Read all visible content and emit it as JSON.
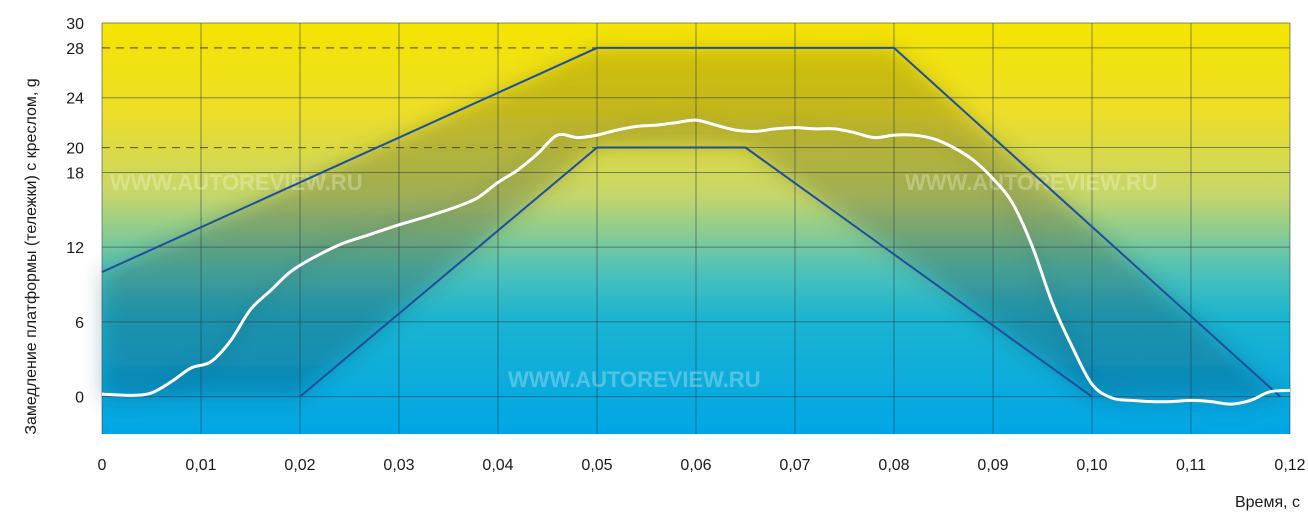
{
  "chart_data": {
    "type": "line",
    "title": "",
    "xlabel": "Время, с",
    "ylabel": "Замедление платформы (тележки) с креслом, g",
    "xlim": [
      0,
      0.12
    ],
    "ylim": [
      -3,
      30
    ],
    "x_ticks": [
      0,
      0.01,
      0.02,
      0.03,
      0.04,
      0.05,
      0.06,
      0.07,
      0.08,
      0.09,
      0.1,
      0.11,
      0.12
    ],
    "x_tick_labels": [
      "0",
      "0,01",
      "0,02",
      "0,03",
      "0,04",
      "0,05",
      "0,06",
      "0,07",
      "0,08",
      "0,09",
      "0,10",
      "0,11",
      "0,12"
    ],
    "y_ticks": [
      0,
      6,
      12,
      18,
      20,
      24,
      28,
      30
    ],
    "y_tick_labels": [
      "0",
      "6",
      "12",
      "18",
      "20",
      "24",
      "28",
      "30"
    ],
    "dashed_levels": [
      20,
      28
    ],
    "grid": true,
    "watermarks": [
      "WWW.AUTOREVIEW.RU",
      "WWW.AUTOREVIEW.RU",
      "WWW.AUTOREVIEW.RU"
    ],
    "colors": {
      "background_top": "#f5e200",
      "background_bottom": "#00a8e8",
      "corridor": "#1c4f9c",
      "curve": "#ffffff",
      "grid": "#2a3a4a"
    },
    "series": [
      {
        "role": "upper-corridor",
        "x": [
          0,
          0.05,
          0.08,
          0.119
        ],
        "y": [
          10,
          28,
          28,
          0
        ]
      },
      {
        "role": "lower-corridor",
        "x": [
          0.02,
          0.05,
          0.065,
          0.1
        ],
        "y": [
          0,
          20,
          20,
          0
        ]
      },
      {
        "role": "measured-curve",
        "x": [
          0,
          0.003,
          0.005,
          0.007,
          0.009,
          0.011,
          0.013,
          0.015,
          0.017,
          0.019,
          0.021,
          0.024,
          0.027,
          0.03,
          0.033,
          0.036,
          0.038,
          0.04,
          0.042,
          0.044,
          0.046,
          0.048,
          0.05,
          0.052,
          0.054,
          0.056,
          0.058,
          0.06,
          0.062,
          0.064,
          0.066,
          0.068,
          0.07,
          0.072,
          0.074,
          0.076,
          0.078,
          0.08,
          0.082,
          0.084,
          0.086,
          0.088,
          0.09,
          0.092,
          0.094,
          0.096,
          0.098,
          0.1,
          0.102,
          0.104,
          0.106,
          0.108,
          0.11,
          0.112,
          0.114,
          0.116,
          0.118,
          0.12
        ],
        "y": [
          0.2,
          0.1,
          0.3,
          1.2,
          2.3,
          2.8,
          4.5,
          7.0,
          8.5,
          10.0,
          11.0,
          12.2,
          13.0,
          13.8,
          14.5,
          15.3,
          16.0,
          17.2,
          18.2,
          19.5,
          21.0,
          20.8,
          21.0,
          21.4,
          21.7,
          21.8,
          22.0,
          22.2,
          21.8,
          21.4,
          21.3,
          21.5,
          21.6,
          21.5,
          21.5,
          21.2,
          20.8,
          21.0,
          21.0,
          20.7,
          20.0,
          19.0,
          17.5,
          15.5,
          12.0,
          7.5,
          4.0,
          1.0,
          -0.1,
          -0.3,
          -0.4,
          -0.4,
          -0.3,
          -0.4,
          -0.6,
          -0.3,
          0.4,
          0.5
        ]
      }
    ]
  }
}
